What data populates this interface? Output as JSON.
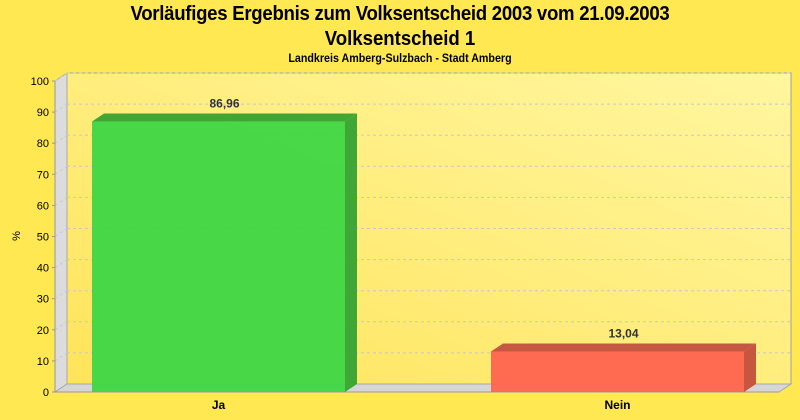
{
  "header": {
    "title": "Vorläufiges Ergebnis zum Volksentscheid 2003 vom 21.09.2003",
    "subtitle": "Volksentscheid 1",
    "region": "Landkreis Amberg-Sulzbach - Stadt Amberg"
  },
  "axis": {
    "ylabel": "%",
    "ticks": [
      "0",
      "10",
      "20",
      "30",
      "40",
      "50",
      "60",
      "70",
      "80",
      "90",
      "100"
    ]
  },
  "bars": [
    {
      "label": "Ja",
      "value_label": "86,96",
      "color": "#3ED645",
      "side": "#3EA735",
      "top": "#41A534"
    },
    {
      "label": "Nein",
      "value_label": "13,04",
      "color": "#FF644F",
      "side": "#C7563F",
      "top": "#C55843"
    }
  ],
  "chart_data": {
    "type": "bar",
    "title": "Vorläufiges Ergebnis zum Volksentscheid 2003 vom 21.09.2003",
    "subtitle": "Volksentscheid 1 — Landkreis Amberg-Sulzbach - Stadt Amberg",
    "categories": [
      "Ja",
      "Nein"
    ],
    "values": [
      86.96,
      13.04
    ],
    "xlabel": "",
    "ylabel": "%",
    "ylim": [
      0,
      100
    ],
    "yticks": [
      0,
      10,
      20,
      30,
      40,
      50,
      60,
      70,
      80,
      90,
      100
    ],
    "grid": true,
    "legend": "none",
    "style": "3d"
  }
}
